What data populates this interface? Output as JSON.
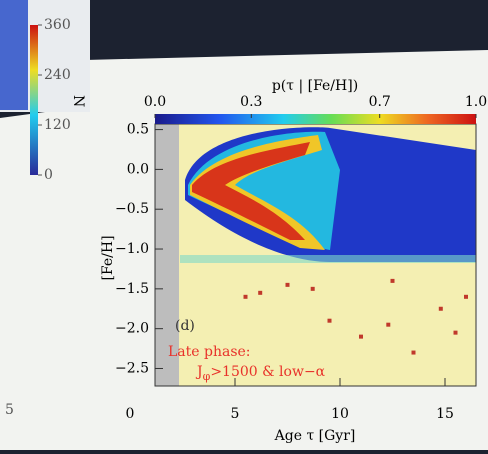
{
  "chart_data": {
    "type": "scatter",
    "title": "p(τ | [Fe/H])",
    "x_label": "Age τ [Gyr]",
    "y_label": "[Fe/H]",
    "panel_label": "(d)",
    "annotation_lines": [
      "Late phase:",
      "J",
      "φ",
      ">1500 & low−α"
    ],
    "xlim": [
      1.2,
      16.5
    ],
    "ylim": [
      -2.72,
      0.57
    ],
    "xticks": [
      0,
      5,
      10,
      15
    ],
    "yticks": [
      0.5,
      {
        "value": 0,
        "label": "0.0"
      },
      {
        "value": -0.5,
        "label": "−0.5"
      },
      {
        "value": -1,
        "label": "−1.0"
      },
      {
        "value": -1.5,
        "label": "−1.5"
      },
      {
        "value": -2,
        "label": "−2.0"
      },
      {
        "value": -2.5,
        "label": "−2.5"
      }
    ],
    "colorbar_ticks": [
      {
        "value": 0,
        "label": "0.0"
      },
      0.3,
      0.7,
      {
        "value": 1,
        "label": "1.0"
      }
    ],
    "series": [
      {
        "color": "#c0392b",
        "x": [
          5.5,
          6.2,
          7.5,
          8.7,
          12.5,
          11,
          12.3,
          13.5,
          14.8,
          16,
          9.5,
          15.5
        ],
        "values": [
          -1.6,
          -1.55,
          -1.45,
          -1.5,
          -1.4,
          -2.1,
          -1.95,
          -2.3,
          -1.75,
          -1.6,
          -1.9,
          -2.05
        ]
      }
    ],
    "background_figure": {
      "colorbar_label": "N",
      "colorbar_ticks": [
        360,
        240,
        120,
        0
      ],
      "x_tick": "5"
    }
  }
}
